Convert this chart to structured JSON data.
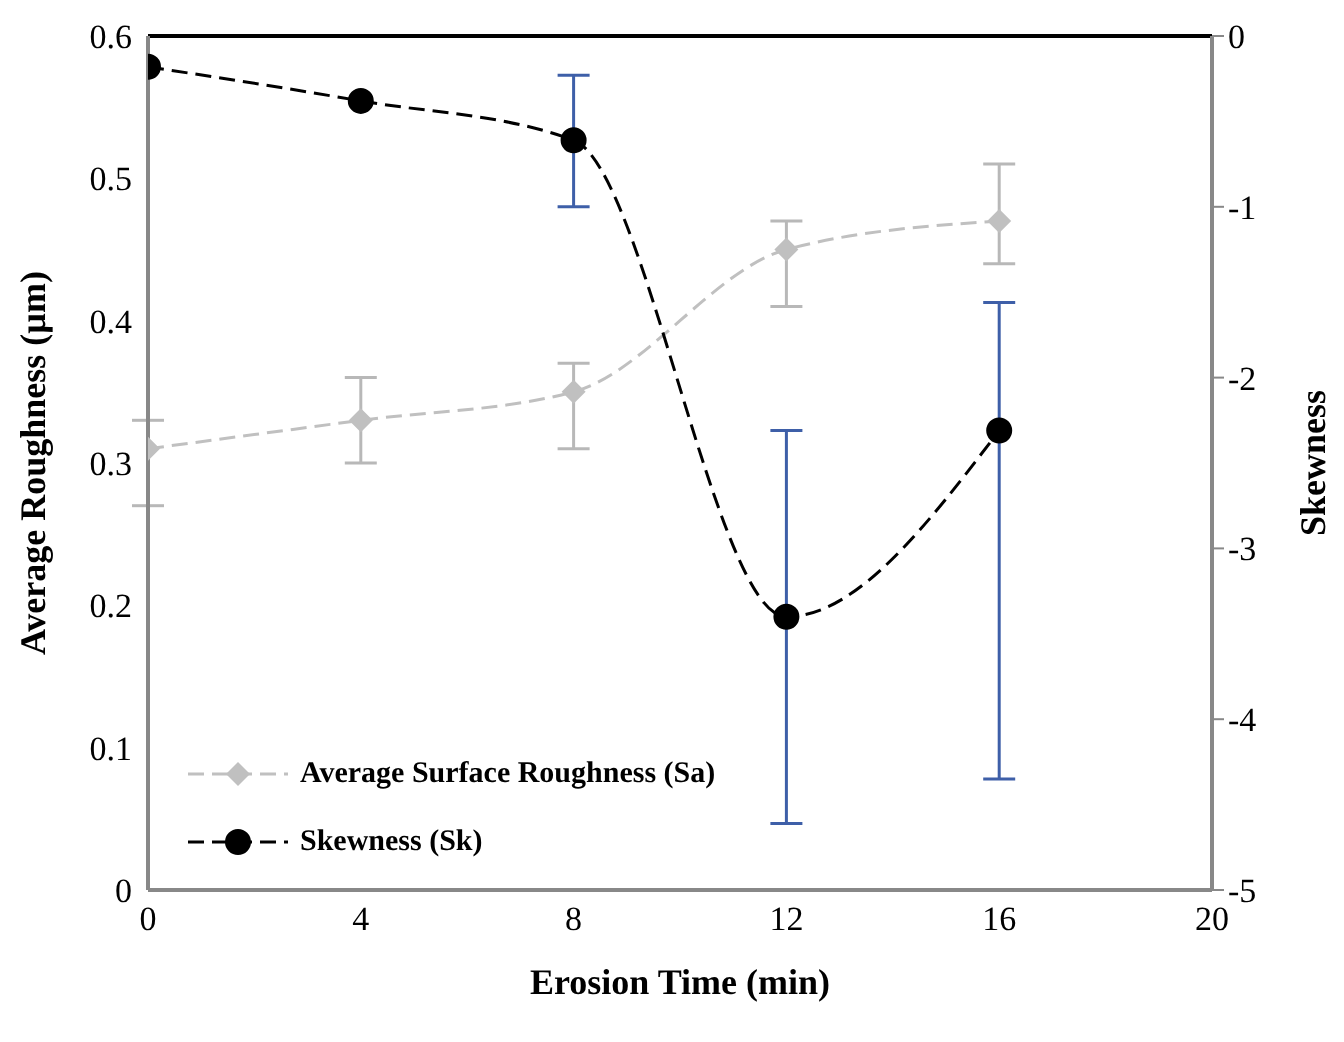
{
  "chart_data": {
    "type": "line",
    "xlabel": "Erosion Time (min)",
    "ylabel": "Average Roughness (µm)",
    "y2label": "Skewness",
    "x": [
      0,
      4,
      8,
      12,
      16
    ],
    "series": [
      {
        "name": "Average Surface Roughness (Sa)",
        "color": "#c0c0c0",
        "marker": "diamond",
        "line_style": "dashed",
        "values": [
          0.31,
          0.33,
          0.35,
          0.45,
          0.47
        ],
        "errors": [
          [
            0.27,
            0.33
          ],
          [
            0.3,
            0.36
          ],
          [
            0.31,
            0.37
          ],
          [
            0.41,
            0.47
          ],
          [
            0.44,
            0.51
          ]
        ]
      },
      {
        "name": "Skewness (Sk)",
        "color": "#000000",
        "marker": "circle",
        "line_style": "dashed",
        "axis": "y2",
        "values": [
          -0.18,
          -0.38,
          -0.61,
          -3.4,
          -2.31
        ],
        "errors": [
          null,
          null,
          [
            -1.0,
            -0.23
          ],
          [
            -4.61,
            -2.31
          ],
          [
            -4.35,
            -1.56
          ]
        ]
      }
    ],
    "xlim": [
      0,
      20
    ],
    "xticks": [
      0,
      4,
      8,
      12,
      16,
      20
    ],
    "ylim": [
      0,
      0.6
    ],
    "yticks": [
      0,
      0.1,
      0.2,
      0.3,
      0.4,
      0.5,
      0.6
    ],
    "y2lim": [
      -5,
      0
    ],
    "y2ticks": [
      -5,
      -4,
      -3,
      -2,
      -1,
      0
    ],
    "grid": false,
    "legend": "bottom left"
  }
}
